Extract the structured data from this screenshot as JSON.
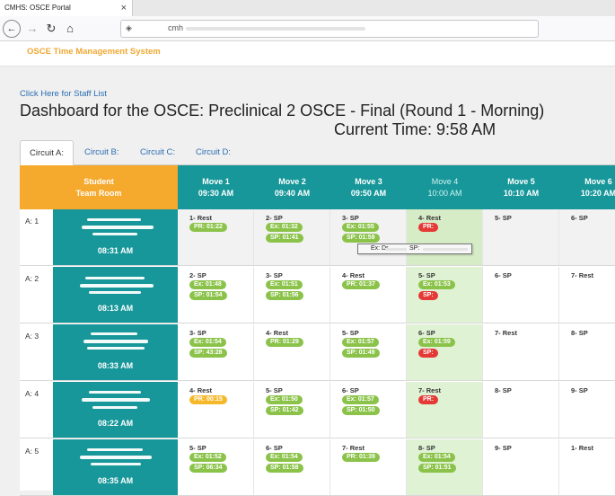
{
  "browser": {
    "tab_title": "CMHS: OSCE Portal",
    "tab_close": "×",
    "url_prefix": "cmh",
    "icons": {
      "back": "back-arrow-icon",
      "forward": "forward-arrow-icon",
      "reload": "reload-icon",
      "home": "home-icon",
      "shield": "shield-icon"
    }
  },
  "app": {
    "title": "OSCE Time Management System"
  },
  "dashboard": {
    "staff_link": "Click Here for Staff List",
    "title": "Dashboard for the OSCE: Preclinical 2 OSCE - Final (Round 1 - Morning)",
    "current_time_label": "Current Time:",
    "current_time": "9:58 AM"
  },
  "circuits": [
    {
      "label": "Circuit A:",
      "active": true
    },
    {
      "label": "Circuit B:",
      "active": false
    },
    {
      "label": "Circuit C:",
      "active": false
    },
    {
      "label": "Circuit D:",
      "active": false
    }
  ],
  "header": {
    "student_line1": "Student",
    "student_line2": "Team Room",
    "moves": [
      {
        "label": "Move 1",
        "time": "09:30 AM"
      },
      {
        "label": "Move 2",
        "time": "09:40 AM"
      },
      {
        "label": "Move 3",
        "time": "09:50 AM"
      },
      {
        "label": "Move 4",
        "time": "10:00 AM"
      },
      {
        "label": "Move 5",
        "time": "10:10 AM"
      },
      {
        "label": "Move 6",
        "time": "10:20 AM"
      }
    ],
    "current_move_index": 3
  },
  "rows": [
    {
      "label": "A: 1",
      "room_time": "08:31 AM",
      "cells": [
        {
          "title": "1- Rest",
          "p1": "PR: 01:22",
          "c1": "green"
        },
        {
          "title": "2- SP",
          "p1": "Ex: 01:32",
          "c1": "green",
          "p2": "SP: 01:41",
          "c2": "green"
        },
        {
          "title": "3- SP",
          "p1": "Ex: 01:55",
          "c1": "green",
          "p2": "SP: 01:59",
          "c2": "green"
        },
        {
          "title": "4- Rest",
          "p1": "PR:",
          "c1": "red"
        },
        {
          "title": "5- SP"
        },
        {
          "title": "6- SP"
        }
      ]
    },
    {
      "label": "A: 2",
      "room_time": "08:13 AM",
      "cells": [
        {
          "title": "2- SP",
          "p1": "Ex: 01:48",
          "c1": "green",
          "p2": "SP: 01:54",
          "c2": "green"
        },
        {
          "title": "3- SP",
          "p1": "Ex: 01:51",
          "c1": "green",
          "p2": "SP: 01:56",
          "c2": "green"
        },
        {
          "title": "4- Rest",
          "p1": "PR: 01:37",
          "c1": "green"
        },
        {
          "title": "5- SP",
          "p1": "Ex: 01:53",
          "c1": "green",
          "p2": "SP:",
          "c2": "red"
        },
        {
          "title": "6- SP"
        },
        {
          "title": "7- Rest"
        }
      ]
    },
    {
      "label": "A: 3",
      "room_time": "08:33 AM",
      "cells": [
        {
          "title": "3- SP",
          "p1": "Ex: 01:54",
          "c1": "green",
          "p2": "SP: 43:28",
          "c2": "green"
        },
        {
          "title": "4- Rest",
          "p1": "PR: 01:29",
          "c1": "green"
        },
        {
          "title": "5- SP",
          "p1": "Ex: 01:57",
          "c1": "green",
          "p2": "SP: 01:49",
          "c2": "green"
        },
        {
          "title": "6- SP",
          "p1": "Ex: 01:59",
          "c1": "green",
          "p2": "SP:",
          "c2": "red"
        },
        {
          "title": "7- Rest"
        },
        {
          "title": "8- SP"
        }
      ]
    },
    {
      "label": "A: 4",
      "room_time": "08:22 AM",
      "cells": [
        {
          "title": "4- Rest",
          "p1": "PR: 00:15",
          "c1": "yellow"
        },
        {
          "title": "5- SP",
          "p1": "Ex: 01:50",
          "c1": "green",
          "p2": "SP: 01:42",
          "c2": "green"
        },
        {
          "title": "6- SP",
          "p1": "Ex: 01:57",
          "c1": "green",
          "p2": "SP: 01:50",
          "c2": "green"
        },
        {
          "title": "7- Rest",
          "p1": "PR:",
          "c1": "red"
        },
        {
          "title": "8- SP"
        },
        {
          "title": "9- SP"
        }
      ]
    },
    {
      "label": "A: 5",
      "room_time": "08:35 AM",
      "cells": [
        {
          "title": "5- SP",
          "p1": "Ex: 01:52",
          "c1": "green",
          "p2": "SP: 06:34",
          "c2": "green"
        },
        {
          "title": "6- SP",
          "p1": "Ex: 01:54",
          "c1": "green",
          "p2": "SP: 01:58",
          "c2": "green"
        },
        {
          "title": "7- Rest",
          "p1": "PR: 01:39",
          "c1": "green"
        },
        {
          "title": "8- SP",
          "p1": "Ex: 01:54",
          "c1": "green",
          "p2": "SP: 01:51",
          "c2": "green"
        },
        {
          "title": "9- SP"
        },
        {
          "title": "1- Rest"
        }
      ]
    }
  ],
  "tooltip": {
    "ex": "Ex: Dr",
    "sp": "SP:"
  },
  "colors": {
    "teal": "#17979a",
    "orange": "#f5a92d",
    "green": "#8bc34a",
    "red": "#e53935",
    "yellow": "#f5b82a",
    "current_col": "#dff2d4",
    "link": "#2a6db4"
  }
}
